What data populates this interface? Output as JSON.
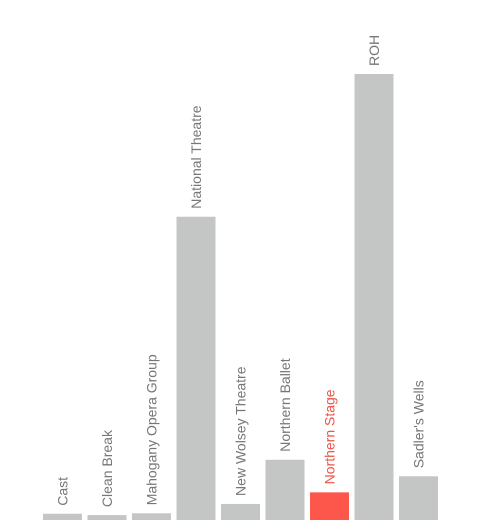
{
  "chart_data": {
    "type": "bar",
    "title": "",
    "xlabel": "",
    "ylabel": "",
    "ylim": [
      0,
      1000
    ],
    "grid": false,
    "categories": [
      "Cast",
      "Clean Break",
      "Mahogany Opera Group",
      "National Theatre",
      "New Wolsey Theatre",
      "Northern Ballet",
      "Northern Stage",
      "ROH",
      "Sadler's Wells"
    ],
    "values": [
      14,
      11,
      15,
      680,
      36,
      135,
      62,
      1000,
      98
    ],
    "highlight": "Northern Stage",
    "colors": {
      "bar": "#c3c6c5",
      "highlight": "#fd574b",
      "label": "#777777",
      "highlight_label": "#ee5448"
    }
  }
}
